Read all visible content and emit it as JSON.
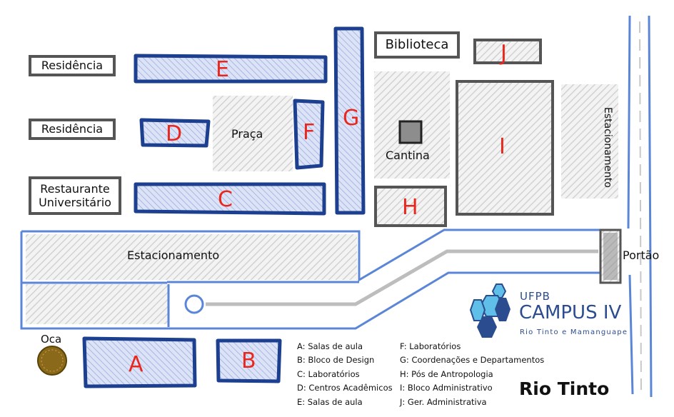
{
  "buildings": {
    "A": "A",
    "B": "B",
    "C": "C",
    "D": "D",
    "E": "E",
    "F": "F",
    "G": "G",
    "H": "H",
    "I": "I",
    "J": "J"
  },
  "labels": {
    "residencia_1": "Residência",
    "residencia_2": "Residência",
    "restaurante": "Restaurante\nUniversitário",
    "biblioteca": "Biblioteca",
    "praca": "Praça",
    "cantina": "Cantina",
    "estacionamento_main": "Estacionamento",
    "estacionamento_right": "Estacionamento",
    "portao": "Portão",
    "oca": "Oca",
    "city": "Rio Tinto"
  },
  "logo": {
    "line1": "UFPB",
    "line2": "CAMPUS IV",
    "line3": "Rio Tinto e Mamanguape"
  },
  "legend": {
    "col1": [
      "A: Salas de aula",
      "B: Bloco de Design",
      "C: Laboratórios",
      "D: Centros Acadêmicos",
      "E: Salas de aula"
    ],
    "col2": [
      "F: Laboratórios",
      "G: Coordenações e Departamentos",
      "H: Pós de Antropologia",
      "I: Bloco Administrativo",
      "J: Ger. Administrativa"
    ]
  },
  "colors": {
    "building_outline": "#1d3f8f",
    "building_fill": "#c6d0ee",
    "road_blue": "#5b86d8",
    "road_gray": "#bdbdbd",
    "hatch_gray": "#e3e3e3",
    "letter_red": "#e8281e"
  }
}
